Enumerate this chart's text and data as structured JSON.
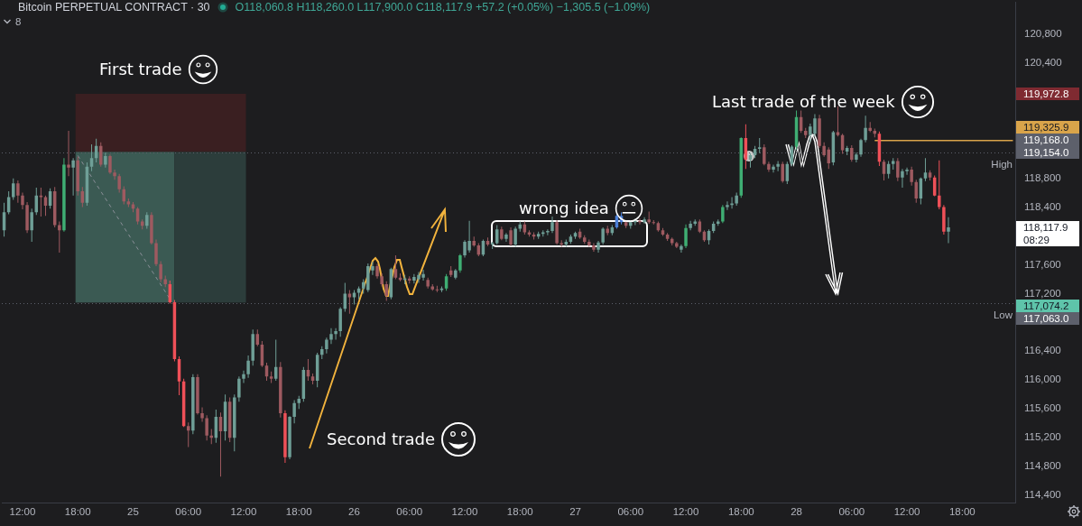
{
  "chart_data": {
    "type": "candlestick",
    "title": "Bitcoin PERPETUAL CONTRACT · 30",
    "subtitle": "O118,060.8 H118,260.0 L117,900.0 C118,117.9 +57.2 (+0.05%) −1,305.5 (−1.09%)",
    "categories": [
      null,
      null,
      null,
      null,
      "12:00",
      null,
      null,
      null,
      null,
      null,
      null,
      null,
      null,
      null,
      null,
      null,
      "18:00",
      null,
      null,
      null,
      null,
      null,
      null,
      null,
      null,
      null,
      null,
      null,
      "25",
      null,
      null,
      null,
      null,
      null,
      null,
      null,
      null,
      null,
      null,
      null,
      "06:00",
      null,
      null,
      null,
      null,
      null,
      null,
      null,
      null,
      null,
      null,
      null,
      "12:00",
      null,
      null,
      null,
      null,
      null,
      null,
      null,
      null,
      null,
      null,
      null,
      "18:00",
      null,
      null,
      null,
      null,
      null,
      null,
      null,
      null,
      null,
      null,
      null,
      "26",
      null,
      null,
      null,
      null,
      null,
      null,
      null,
      null,
      null,
      null,
      null,
      "06:00",
      null,
      null,
      null,
      null,
      null,
      null,
      null,
      null,
      null,
      null,
      null,
      "12:00",
      null,
      null,
      null,
      null,
      null,
      null,
      null,
      null,
      null,
      null,
      null,
      "18:00",
      null,
      null,
      null,
      null,
      null,
      null,
      null,
      null,
      null,
      null,
      null,
      "27",
      null,
      null,
      null,
      null,
      null,
      null,
      null,
      null,
      null,
      null,
      null,
      "06:00",
      null,
      null,
      null,
      null,
      null,
      null,
      null,
      null,
      null,
      null,
      null,
      "12:00",
      null,
      null,
      null,
      null,
      null,
      null,
      null,
      null,
      null,
      null,
      null,
      "18:00",
      null,
      null,
      null,
      null,
      null,
      null,
      null,
      null,
      null,
      null,
      null,
      "28",
      null,
      null,
      null,
      null,
      null,
      null,
      null,
      null,
      null,
      null,
      null,
      "06:00",
      null,
      null,
      null,
      null,
      null,
      null,
      null,
      null,
      null,
      null,
      null,
      "12:00",
      null,
      null,
      null,
      null,
      null,
      null,
      null,
      null,
      null,
      null,
      null,
      "18:00",
      null,
      null,
      null,
      null,
      null,
      null,
      null,
      null,
      null,
      null,
      null
    ],
    "ohlc": [
      [
        118080,
        118460,
        117990,
        118330
      ],
      [
        118330,
        118620,
        118300,
        118540
      ],
      [
        118540,
        118800,
        118500,
        118730
      ],
      [
        118730,
        118770,
        118460,
        118560
      ],
      [
        118560,
        118600,
        118370,
        118430
      ],
      [
        118430,
        118470,
        118040,
        118080
      ],
      [
        118080,
        118380,
        117920,
        118330
      ],
      [
        118330,
        118670,
        118290,
        118560
      ],
      [
        118560,
        118670,
        118270,
        118540
      ],
      [
        118540,
        118560,
        118280,
        118420
      ],
      [
        118420,
        118660,
        118380,
        118620
      ],
      [
        118620,
        118680,
        118120,
        118150
      ],
      [
        118150,
        118200,
        117770,
        118080
      ],
      [
        118080,
        119080,
        118060,
        118990
      ],
      [
        118990,
        119460,
        118830,
        118950
      ],
      [
        118950,
        119080,
        118560,
        119050
      ],
      [
        119050,
        119100,
        118560,
        118620
      ],
      [
        118620,
        118680,
        118400,
        118460
      ],
      [
        118460,
        119020,
        118420,
        118960
      ],
      [
        118960,
        119270,
        118900,
        119080
      ],
      [
        119080,
        119350,
        119020,
        119250
      ],
      [
        119250,
        119300,
        118960,
        118990
      ],
      [
        118990,
        119160,
        118950,
        119110
      ],
      [
        119110,
        119130,
        118860,
        118880
      ],
      [
        118880,
        118920,
        118780,
        118830
      ],
      [
        118830,
        118860,
        118600,
        118650
      ],
      [
        118650,
        118690,
        118440,
        118480
      ],
      [
        118480,
        118520,
        118400,
        118440
      ],
      [
        118440,
        118470,
        118330,
        118380
      ],
      [
        118380,
        118400,
        118160,
        118200
      ],
      [
        118200,
        118230,
        118090,
        118140
      ],
      [
        118140,
        118330,
        118100,
        118290
      ],
      [
        118290,
        118330,
        117880,
        117900
      ],
      [
        117900,
        117950,
        117580,
        117610
      ],
      [
        117610,
        117650,
        117360,
        117400
      ],
      [
        117400,
        117450,
        117290,
        117330
      ],
      [
        117330,
        117380,
        117060,
        117080
      ],
      [
        117080,
        117110,
        116260,
        116290
      ],
      [
        116290,
        116330,
        115790,
        115980
      ],
      [
        115980,
        116020,
        115350,
        115360
      ],
      [
        115360,
        115410,
        115070,
        115300
      ],
      [
        115300,
        116080,
        115250,
        116040
      ],
      [
        116040,
        116080,
        115520,
        115540
      ],
      [
        115540,
        115620,
        115420,
        115470
      ],
      [
        115470,
        115510,
        115160,
        115230
      ],
      [
        115230,
        115320,
        115110,
        115200
      ],
      [
        115200,
        115590,
        115130,
        115490
      ],
      [
        115490,
        115550,
        114660,
        115290
      ],
      [
        115290,
        115800,
        115160,
        115700
      ],
      [
        115700,
        115760,
        115140,
        115200
      ],
      [
        115200,
        115800,
        115010,
        115760
      ],
      [
        115760,
        116050,
        115700,
        116020
      ],
      [
        116020,
        116130,
        115960,
        116080
      ],
      [
        116080,
        116340,
        116030,
        116270
      ],
      [
        116270,
        116700,
        116200,
        116640
      ],
      [
        116640,
        116700,
        116470,
        116490
      ],
      [
        116490,
        116540,
        116180,
        116200
      ],
      [
        116200,
        116240,
        115990,
        116050
      ],
      [
        116050,
        116120,
        115960,
        116020
      ],
      [
        116020,
        116560,
        115990,
        116180
      ],
      [
        116180,
        116250,
        115480,
        115540
      ],
      [
        115540,
        115580,
        114850,
        114930
      ],
      [
        114930,
        115500,
        114900,
        115490
      ],
      [
        115490,
        115720,
        115400,
        115680
      ],
      [
        115680,
        115780,
        115600,
        115740
      ],
      [
        115740,
        116180,
        115700,
        116140
      ],
      [
        116140,
        116290,
        115990,
        116050
      ],
      [
        116050,
        116090,
        115940,
        115990
      ],
      [
        115990,
        116380,
        115900,
        116350
      ],
      [
        116350,
        116470,
        116290,
        116430
      ],
      [
        116430,
        116590,
        116370,
        116560
      ],
      [
        116560,
        116720,
        116500,
        116640
      ],
      [
        116640,
        116720,
        116560,
        116680
      ],
      [
        116680,
        117010,
        116600,
        116990
      ],
      [
        116990,
        117350,
        116950,
        117200
      ],
      [
        117200,
        117250,
        116920,
        117150
      ],
      [
        117150,
        117250,
        117050,
        117210
      ],
      [
        117210,
        117300,
        117120,
        117270
      ],
      [
        117270,
        117400,
        117200,
        117360
      ],
      [
        117250,
        117620,
        117220,
        117580
      ],
      [
        117520,
        117640,
        117460,
        117580
      ],
      [
        117580,
        117610,
        117410,
        117440
      ],
      [
        117440,
        117480,
        117300,
        117330
      ],
      [
        117330,
        117370,
        117100,
        117170
      ],
      [
        117150,
        117560,
        117120,
        117540
      ],
      [
        117540,
        117730,
        117400,
        117420
      ],
      [
        117420,
        117480,
        117370,
        117390
      ],
      [
        117390,
        117460,
        117330,
        117410
      ],
      [
        117410,
        117440,
        117340,
        117380
      ],
      [
        117380,
        117470,
        117340,
        117430
      ],
      [
        117400,
        117500,
        117350,
        117460
      ],
      [
        117420,
        117530,
        117380,
        117470
      ],
      [
        117390,
        117420,
        117270,
        117300
      ],
      [
        117300,
        117330,
        117240,
        117260
      ],
      [
        117260,
        117310,
        117220,
        117250
      ],
      [
        117250,
        117300,
        117220,
        117270
      ],
      [
        117270,
        117470,
        117240,
        117440
      ],
      [
        117520,
        117580,
        117430,
        117460
      ],
      [
        117420,
        117540,
        117400,
        117520
      ],
      [
        117520,
        117750,
        117490,
        117730
      ],
      [
        117730,
        117940,
        117700,
        117920
      ],
      [
        117800,
        118210,
        117770,
        117930
      ],
      [
        117930,
        117990,
        117850,
        117870
      ],
      [
        117870,
        117900,
        117720,
        117740
      ],
      [
        117740,
        117950,
        117720,
        117930
      ],
      [
        117930,
        117980,
        117860,
        117880
      ],
      [
        117880,
        117920,
        117820,
        117900
      ],
      [
        117900,
        118150,
        117880,
        118090
      ],
      [
        118090,
        118130,
        117940,
        117960
      ],
      [
        117960,
        118040,
        117920,
        118020
      ],
      [
        118080,
        118120,
        117860,
        117880
      ],
      [
        117880,
        118130,
        117850,
        118100
      ],
      [
        118100,
        118200,
        118060,
        118160
      ],
      [
        118160,
        118200,
        118020,
        118050
      ],
      [
        118050,
        118080,
        117990,
        118020
      ],
      [
        118020,
        118050,
        117950,
        117990
      ],
      [
        117990,
        118060,
        117960,
        118030
      ],
      [
        118030,
        118080,
        117990,
        118050
      ],
      [
        118050,
        118090,
        118010,
        118070
      ],
      [
        118070,
        118270,
        118040,
        118190
      ],
      [
        118190,
        118220,
        117880,
        117900
      ],
      [
        117900,
        117940,
        117850,
        117880
      ],
      [
        117880,
        117950,
        117850,
        117920
      ],
      [
        117920,
        118020,
        117890,
        117990
      ],
      [
        117990,
        118060,
        117960,
        118040
      ],
      [
        118060,
        118100,
        117960,
        117980
      ],
      [
        117980,
        118010,
        117890,
        117920
      ],
      [
        117920,
        117950,
        117850,
        117870
      ],
      [
        117870,
        117900,
        117780,
        117810
      ],
      [
        117810,
        117930,
        117770,
        117910
      ],
      [
        117910,
        118120,
        117880,
        118100
      ],
      [
        118100,
        118140,
        118010,
        118040
      ],
      [
        118040,
        118150,
        118010,
        118120
      ],
      [
        118120,
        118300,
        118100,
        118280
      ],
      [
        118280,
        118330,
        118160,
        118190
      ],
      [
        118190,
        118220,
        118110,
        118140
      ],
      [
        118140,
        118220,
        118100,
        118190
      ],
      [
        118190,
        118240,
        118150,
        118210
      ],
      [
        118210,
        118240,
        118160,
        118190
      ],
      [
        118190,
        118260,
        118170,
        118230
      ],
      [
        118230,
        118340,
        118170,
        118190
      ],
      [
        118190,
        118220,
        118160,
        118180
      ],
      [
        118180,
        118200,
        118060,
        118080
      ],
      [
        118080,
        118110,
        118000,
        118020
      ],
      [
        118020,
        118040,
        117930,
        117960
      ],
      [
        117960,
        117980,
        117870,
        117900
      ],
      [
        117900,
        117920,
        117830,
        117850
      ],
      [
        117810,
        117880,
        117770,
        117860
      ],
      [
        117860,
        118160,
        117830,
        118110
      ],
      [
        118110,
        118210,
        118080,
        118170
      ],
      [
        118170,
        118230,
        118140,
        118200
      ],
      [
        118200,
        118230,
        118040,
        118060
      ],
      [
        118060,
        118080,
        117920,
        117940
      ],
      [
        117940,
        118090,
        117880,
        118070
      ],
      [
        118070,
        118200,
        118040,
        118170
      ],
      [
        118170,
        118230,
        118140,
        118200
      ],
      [
        118200,
        118430,
        118180,
        118400
      ],
      [
        118400,
        118480,
        118360,
        118430
      ],
      [
        118430,
        118540,
        118380,
        118450
      ],
      [
        118450,
        118600,
        118420,
        118560
      ],
      [
        118560,
        119370,
        118530,
        119360
      ],
      [
        119360,
        119550,
        118930,
        119060
      ],
      [
        119060,
        119150,
        118950,
        119120
      ],
      [
        119120,
        119250,
        119080,
        119210
      ],
      [
        119210,
        119360,
        119150,
        119230
      ],
      [
        119230,
        119270,
        118980,
        119000
      ],
      [
        119000,
        119030,
        118890,
        118920
      ],
      [
        118920,
        118990,
        118880,
        118960
      ],
      [
        118960,
        119040,
        118900,
        119000
      ],
      [
        119000,
        119030,
        118740,
        118760
      ],
      [
        118760,
        119030,
        118720,
        119000
      ],
      [
        119000,
        119260,
        118970,
        119240
      ],
      [
        119240,
        119740,
        119200,
        119650
      ],
      [
        119650,
        119740,
        119430,
        119460
      ],
      [
        119460,
        119500,
        119360,
        119400
      ],
      [
        119400,
        119560,
        119300,
        119520
      ],
      [
        119420,
        119690,
        119380,
        119630
      ],
      [
        119630,
        119680,
        119220,
        119250
      ],
      [
        119250,
        119300,
        119100,
        119120
      ],
      [
        119200,
        119230,
        118930,
        119010
      ],
      [
        119020,
        119460,
        118980,
        119440
      ],
      [
        119440,
        119800,
        119380,
        119400
      ],
      [
        119400,
        119420,
        119140,
        119190
      ],
      [
        119170,
        119250,
        119120,
        119220
      ],
      [
        119220,
        119260,
        119030,
        119060
      ],
      [
        119060,
        119160,
        119020,
        119130
      ],
      [
        119130,
        119350,
        119100,
        119330
      ],
      [
        119330,
        119670,
        119300,
        119500
      ],
      [
        119500,
        119580,
        119440,
        119460
      ],
      [
        119460,
        119490,
        119370,
        119420
      ],
      [
        119420,
        119450,
        118970,
        119030
      ],
      [
        119030,
        119060,
        118770,
        118860
      ],
      [
        118860,
        119040,
        118800,
        119000
      ],
      [
        119000,
        119080,
        118920,
        119040
      ],
      [
        119040,
        119080,
        118760,
        118810
      ],
      [
        118810,
        118930,
        118670,
        118900
      ],
      [
        118900,
        118950,
        118850,
        118920
      ],
      [
        118920,
        118960,
        118700,
        118750
      ],
      [
        118750,
        118780,
        118460,
        118520
      ],
      [
        118520,
        118810,
        118440,
        118800
      ],
      [
        118800,
        119080,
        118760,
        118880
      ],
      [
        118880,
        118910,
        118770,
        118810
      ],
      [
        118810,
        118840,
        118550,
        118560
      ],
      [
        118560,
        119050,
        118370,
        118400
      ],
      [
        118400,
        118430,
        118020,
        118060
      ],
      [
        118060.8,
        118260.0,
        117900.0,
        118117.9
      ],
      null,
      null,
      null,
      null,
      null,
      null,
      null,
      null,
      null,
      null,
      null,
      null,
      null,
      null
    ],
    "colors": [
      "#6f9f97",
      "#6f9f97",
      "#6f9f97",
      "#9e5a60",
      "#9e5a60",
      "#9e5a60",
      "#6f9f97",
      "#6f9f97",
      "#9e5a60",
      "#9e5a60",
      "#6f9f97",
      "#9e5a60",
      "#9e5a60",
      "#3fae73",
      "#9e5a60",
      "#6f9f97",
      "#9e5a60",
      "#9e5a60",
      "#6f9f97",
      "#6f9f97",
      "#6f9f97",
      "#9e5a60",
      "#6f9f97",
      "#9e5a60",
      "#9e5a60",
      "#9e5a60",
      "#9e5a60",
      "#9e5a60",
      "#9e5a60",
      "#9e5a60",
      "#9e5a60",
      "#6f9f97",
      "#9e5a60",
      "#9e5a60",
      "#9e5a60",
      "#9e5a60",
      "#ef5058",
      "#ef5058",
      "#ef5058",
      "#ef5058",
      "#9e5a60",
      "#6f9f97",
      "#9e5a60",
      "#9e5a60",
      "#9e5a60",
      "#9e5a60",
      "#6f9f97",
      "#9e5a60",
      "#6f9f97",
      "#9e5a60",
      "#6f9f97",
      "#6f9f97",
      "#6f9f97",
      "#6f9f97",
      "#6f9f97",
      "#9e5a60",
      "#9e5a60",
      "#9e5a60",
      "#9e5a60",
      "#6f9f97",
      "#9e5a60",
      "#ef5058",
      "#6f9f97",
      "#6f9f97",
      "#6f9f97",
      "#6f9f97",
      "#9e5a60",
      "#9e5a60",
      "#6f9f97",
      "#6f9f97",
      "#6f9f97",
      "#6f9f97",
      "#6f9f97",
      "#6f9f97",
      "#6f9f97",
      "#9e5a60",
      "#6f9f97",
      "#6f9f97",
      "#6f9f97",
      "#6f9f97",
      "#6f9f97",
      "#9e5a60",
      "#9e5a60",
      "#9e5a60",
      "#6f9f97",
      "#9e5a60",
      "#9e5a60",
      "#6f9f97",
      "#9e5a60",
      "#6f9f97",
      "#6f9f97",
      "#6f9f97",
      "#9e5a60",
      "#9e5a60",
      "#9e5a60",
      "#6f9f97",
      "#3fae73",
      "#9e5a60",
      "#6f9f97",
      "#3fae73",
      "#6f9f97",
      "#6f9f97",
      "#9e5a60",
      "#9e5a60",
      "#6f9f97",
      "#9e5a60",
      "#6f9f97",
      "#6f9f97",
      "#9e5a60",
      "#6f9f97",
      "#9e5a60",
      "#6f9f97",
      "#6f9f97",
      "#9e5a60",
      "#9e5a60",
      "#9e5a60",
      "#6f9f97",
      "#6f9f97",
      "#6f9f97",
      "#6f9f97",
      "#9e5a60",
      "#9e5a60",
      "#6f9f97",
      "#6f9f97",
      "#6f9f97",
      "#9e5a60",
      "#9e5a60",
      "#9e5a60",
      "#9e5a60",
      "#6f9f97",
      "#6f9f97",
      "#9e5a60",
      "#6f9f97",
      "#4b7fd6",
      "#4b7fd6",
      "#9e5a60",
      "#6f9f97",
      "#6f9f97",
      "#9e5a60",
      "#6f9f97",
      "#9e5a60",
      "#9e5a60",
      "#9e5a60",
      "#9e5a60",
      "#9e5a60",
      "#9e5a60",
      "#9e5a60",
      "#6f9f97",
      "#3fae73",
      "#6f9f97",
      "#6f9f97",
      "#9e5a60",
      "#9e5a60",
      "#6f9f97",
      "#6f9f97",
      "#6f9f97",
      "#3fae73",
      "#6f9f97",
      "#6f9f97",
      "#6f9f97",
      "#3fae73",
      "#ef5058",
      "#6f9f97",
      "#6f9f97",
      "#6f9f97",
      "#9e5a60",
      "#9e5a60",
      "#6f9f97",
      "#6f9f97",
      "#9e5a60",
      "#6f9f97",
      "#6f9f97",
      "#3fae73",
      "#9e5a60",
      "#9e5a60",
      "#6f9f97",
      "#6f9f97",
      "#9e5a60",
      "#9e5a60",
      "#9e5a60",
      "#6f9f97",
      "#9e5a60",
      "#9e5a60",
      "#6f9f97",
      "#9e5a60",
      "#6f9f97",
      "#6f9f97",
      "#6f9f97",
      "#9e5a60",
      "#9e5a60",
      "#ef5058",
      "#9e5a60",
      "#6f9f97",
      "#6f9f97",
      "#9e5a60",
      "#6f9f97",
      "#6f9f97",
      "#9e5a60",
      "#9e5a60",
      "#6f9f97",
      "#6f9f97",
      "#9e5a60",
      "#ef5058",
      "#ef5058",
      "#ef5058",
      "#6f9f97",
      null,
      null,
      null,
      null,
      null,
      null,
      null,
      null,
      null,
      null,
      null,
      null,
      null,
      null
    ],
    "series": [
      {
        "type": "line",
        "color": "#d9a44a",
        "values": [
          null,
          null,
          null,
          null,
          null,
          null,
          null,
          null,
          null,
          null,
          null,
          null,
          null,
          null,
          null,
          null,
          null,
          null,
          null,
          null,
          null,
          null,
          null,
          null,
          null,
          null,
          null,
          null,
          null,
          null,
          null,
          null,
          null,
          null,
          null,
          null,
          null,
          null,
          null,
          null,
          null,
          null,
          null,
          null,
          null,
          null,
          null,
          null,
          null,
          null,
          null,
          null,
          null,
          null,
          null,
          null,
          null,
          null,
          null,
          null,
          null,
          null,
          null,
          null,
          null,
          null,
          null,
          null,
          null,
          null,
          null,
          null,
          null,
          null,
          null,
          null,
          null,
          null,
          null,
          null,
          null,
          null,
          null,
          null,
          null,
          null,
          null,
          null,
          null,
          null,
          null,
          null,
          null,
          null,
          null,
          null,
          null,
          null,
          null,
          null,
          null,
          null,
          null,
          null,
          null,
          null,
          null,
          null,
          null,
          null,
          null,
          null,
          null,
          null,
          null,
          null,
          null,
          null,
          null,
          null,
          null,
          null,
          null,
          null,
          null,
          null,
          null,
          null,
          null,
          null,
          null,
          null,
          null,
          null,
          null,
          null,
          null,
          null,
          null,
          null,
          null,
          null,
          null,
          null,
          null,
          null,
          null,
          null,
          null,
          null,
          null,
          null,
          null,
          null,
          null,
          null,
          null,
          null,
          null,
          null,
          null,
          null,
          null,
          null,
          null,
          null,
          null,
          null,
          null,
          null,
          null,
          null,
          null,
          null,
          null,
          null,
          null,
          null,
          null,
          null,
          null,
          null,
          null,
          null,
          null,
          null,
          null,
          null,
          null,
          119325.9,
          119325.9,
          119325.9,
          119325.9,
          119325.9,
          119325.9,
          119325.9,
          119325.9,
          119325.9,
          119325.9,
          119325.9,
          119325.9,
          119325.9,
          119325.9,
          119325.9,
          119325.9,
          119325.9,
          119325.9,
          119325.9,
          119325.9,
          119325.9,
          119325.9,
          119325.9,
          119325.9,
          119325.9,
          119325.9,
          119325.9,
          119325.9,
          119325.9,
          119325.9,
          119325.9
        ],
        "value_labels": [
          null,
          null,
          null,
          null,
          null,
          null,
          null,
          null,
          null,
          null,
          null,
          null,
          null,
          null,
          null,
          null,
          null,
          null,
          null,
          null,
          null,
          null,
          null,
          null,
          null,
          null,
          null,
          null,
          null,
          null,
          null,
          null,
          null,
          null,
          null,
          null,
          null,
          null,
          null,
          null,
          null,
          null,
          null,
          null,
          null,
          null,
          null,
          null,
          null,
          null,
          null,
          null,
          null,
          null,
          null,
          null,
          null,
          null,
          null,
          null,
          null,
          null,
          null,
          null,
          null,
          null,
          null,
          null,
          null,
          null,
          null,
          null,
          null,
          null,
          null,
          null,
          null,
          null,
          null,
          null,
          null,
          null,
          null,
          null,
          null,
          null,
          null,
          null,
          null,
          null,
          null,
          null,
          null,
          null,
          null,
          null,
          null,
          null,
          null,
          null,
          null,
          null,
          null,
          null,
          null,
          null,
          null,
          null,
          null,
          null,
          null,
          null,
          null,
          null,
          null,
          null,
          null,
          null,
          null,
          null,
          null,
          null,
          null,
          null,
          null,
          null,
          null,
          null,
          null,
          null,
          null,
          null,
          null,
          null,
          null,
          null,
          null,
          null,
          null,
          null,
          null,
          null,
          null,
          null,
          null,
          null,
          null,
          null,
          null,
          null,
          null,
          null,
          null,
          null,
          null,
          null,
          null,
          null,
          null,
          null,
          null,
          null,
          null,
          null,
          null,
          null,
          null,
          null,
          null,
          null,
          null,
          null,
          null,
          null,
          null,
          null,
          null,
          null,
          null,
          null,
          null,
          null,
          null,
          null,
          null,
          null,
          null,
          null,
          null,
          null,
          null,
          null,
          null,
          null,
          null,
          null,
          null,
          null,
          null,
          null,
          null,
          null,
          null,
          null,
          null,
          null,
          null,
          null,
          null,
          null,
          null,
          null,
          null,
          null,
          null,
          null,
          null,
          null,
          null,
          "119,325.9"
        ]
      }
    ],
    "ylim": [
      114300,
      121250
    ],
    "yticks": [
      {
        "value": 114400,
        "label": "114,400"
      },
      {
        "value": 114800,
        "label": "114,800"
      },
      {
        "value": 115200,
        "label": "115,200"
      },
      {
        "value": 115600,
        "label": "115,600"
      },
      {
        "value": 116000,
        "label": "116,000"
      },
      {
        "value": 116400,
        "label": "116,400"
      },
      {
        "value": 117200,
        "label": "117,200"
      },
      {
        "value": 117600,
        "label": "117,600"
      },
      {
        "value": 118400,
        "label": "118,400"
      },
      {
        "value": 118800,
        "label": "118,800"
      },
      {
        "value": 120400,
        "label": "120,400"
      },
      {
        "value": 120800,
        "label": "120,800"
      }
    ],
    "ref_lines": [
      {
        "axis": "y",
        "value": 119154.0,
        "label": "High",
        "color": "#5d606b",
        "line_style": "dotted"
      },
      {
        "axis": "y",
        "value": 117063.0,
        "label": "Low",
        "color": "#5d606b",
        "line_style": "dotted"
      }
    ],
    "annotations": [
      "First trade",
      "wrong idea",
      "Second trade",
      "Last trade of the week",
      "119,972.8",
      "119,168.0",
      "119,154.0",
      "118,117.9",
      "08:29",
      "117,074.2",
      "117,063.0",
      "8"
    ]
  }
}
